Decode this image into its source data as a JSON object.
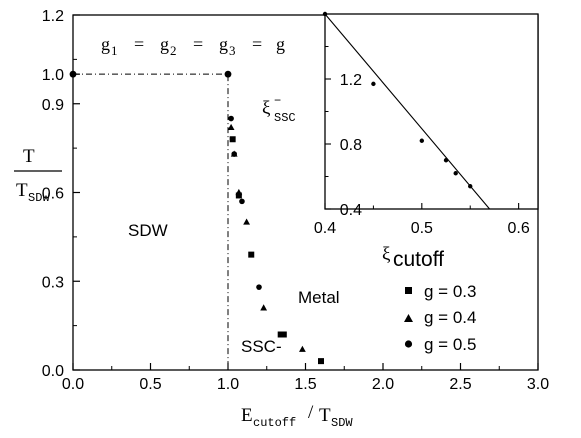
{
  "chart_data": {
    "type": "scatter",
    "xlabel": {
      "main": "E",
      "main_sub": "cutoff",
      "sep": "/",
      "denom": "T",
      "denom_sub": "SDW"
    },
    "ylabel": {
      "num": "T",
      "denom": "T",
      "denom_sub": "SDW"
    },
    "xlim": [
      0.0,
      3.0
    ],
    "ylim": [
      0.0,
      1.2
    ],
    "xticks": [
      "0.0",
      "0.5",
      "1.0",
      "1.5",
      "2.0",
      "2.5",
      "3.0"
    ],
    "yticks": [
      "0.0",
      "0.3",
      "0.6",
      "0.9",
      "1.0",
      "1.2"
    ],
    "annotation": {
      "g": "g",
      "eq": "=",
      "sub1": "1",
      "sub2": "2",
      "sub3": "3"
    },
    "regions": [
      "SDW",
      "Metal",
      "SSC-"
    ],
    "boundary": {
      "style": "dash-dot",
      "points": [
        [
          0.0,
          1.0
        ],
        [
          1.0,
          1.0
        ],
        [
          1.0,
          0.0
        ]
      ]
    },
    "boundary_markers": [
      [
        0.0,
        1.0
      ],
      [
        1.0,
        1.0
      ]
    ],
    "series": [
      {
        "name": "g = 0.3",
        "marker": "square",
        "points": [
          [
            1.03,
            0.78
          ],
          [
            1.07,
            0.59
          ],
          [
            1.15,
            0.39
          ],
          [
            1.34,
            0.12
          ],
          [
            1.36,
            0.12
          ],
          [
            1.6,
            0.03
          ]
        ]
      },
      {
        "name": "g = 0.4",
        "marker": "triangle",
        "points": [
          [
            1.02,
            0.82
          ],
          [
            1.04,
            0.73
          ],
          [
            1.07,
            0.6
          ],
          [
            1.12,
            0.5
          ],
          [
            1.23,
            0.21
          ],
          [
            1.48,
            0.07
          ]
        ]
      },
      {
        "name": "g = 0.5",
        "marker": "circle",
        "points": [
          [
            1.02,
            0.85
          ],
          [
            1.04,
            0.73
          ],
          [
            1.09,
            0.57
          ],
          [
            1.2,
            0.28
          ]
        ]
      }
    ],
    "inset": {
      "type": "line",
      "xlabel": {
        "main": "ξ",
        "sub": "cutoff"
      },
      "ylabel": {
        "main": "ξ",
        "sub": "SSC",
        "sup": "−"
      },
      "xlim": [
        0.4,
        0.62
      ],
      "ylim": [
        0.4,
        1.6
      ],
      "xticks": [
        "0.4",
        "0.5",
        "0.6"
      ],
      "yticks": [
        "0.4",
        "0.8",
        "1.2"
      ],
      "points": [
        [
          0.4,
          1.6
        ],
        [
          0.45,
          1.17
        ],
        [
          0.5,
          0.82
        ],
        [
          0.525,
          0.7
        ],
        [
          0.535,
          0.62
        ],
        [
          0.55,
          0.54
        ]
      ],
      "fit_line": [
        [
          0.4,
          1.6
        ],
        [
          0.57,
          0.4
        ]
      ]
    }
  }
}
